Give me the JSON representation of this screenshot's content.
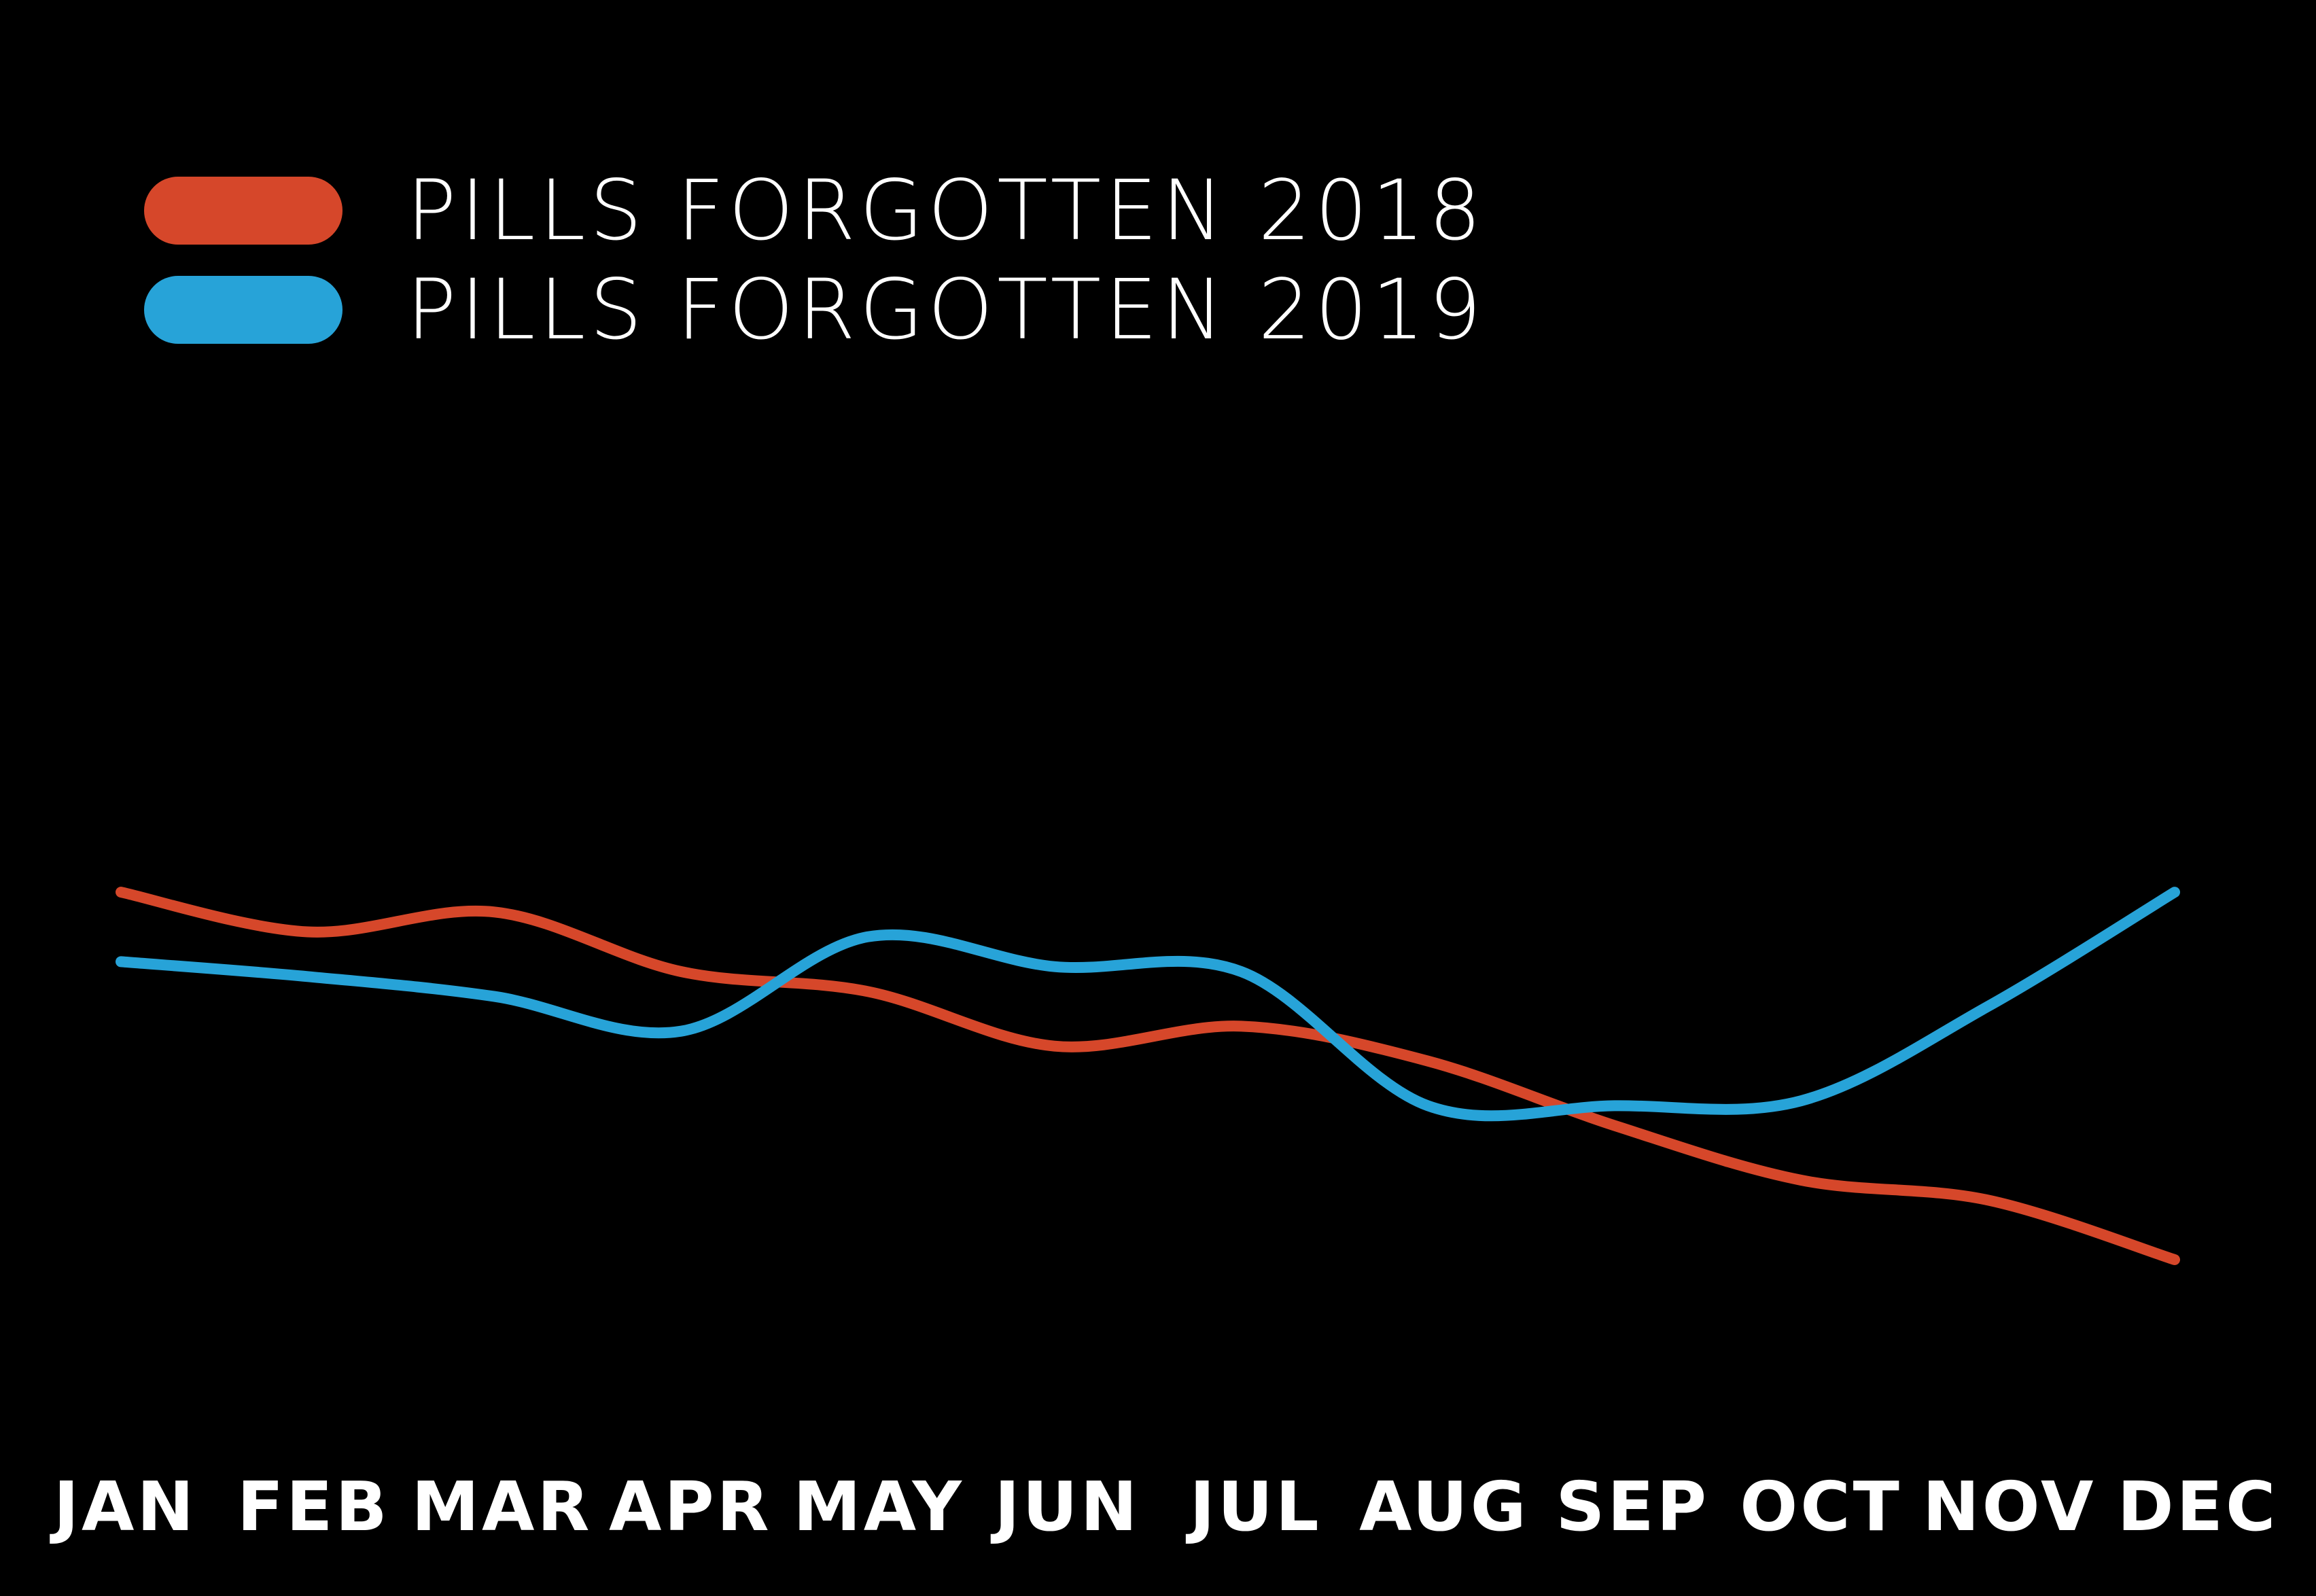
{
  "chart_data": {
    "type": "line",
    "title": "",
    "xlabel": "",
    "ylabel": "",
    "categories": [
      "JAN",
      "FEB",
      "MAR",
      "APR",
      "MAY",
      "JUN",
      "JUL",
      "AUG",
      "SEP",
      "OCT",
      "NOV",
      "DEC"
    ],
    "ylim": [
      0,
      10
    ],
    "grid": false,
    "axes_visible": false,
    "legend_position": "top-left",
    "background": "#000000",
    "text_color": "#ffffff",
    "series": [
      {
        "name": "PILLS FORGOTTEN 2018",
        "color": "#d6472a",
        "values": [
          7.4,
          6.6,
          7.0,
          5.8,
          5.4,
          4.3,
          4.7,
          4.0,
          2.7,
          1.6,
          1.2,
          0.0
        ]
      },
      {
        "name": "PILLS FORGOTTEN 2019",
        "color": "#27a3d8",
        "values": [
          6.0,
          5.7,
          5.3,
          4.6,
          6.5,
          5.9,
          5.8,
          3.1,
          3.1,
          3.2,
          5.1,
          7.4
        ]
      }
    ]
  }
}
